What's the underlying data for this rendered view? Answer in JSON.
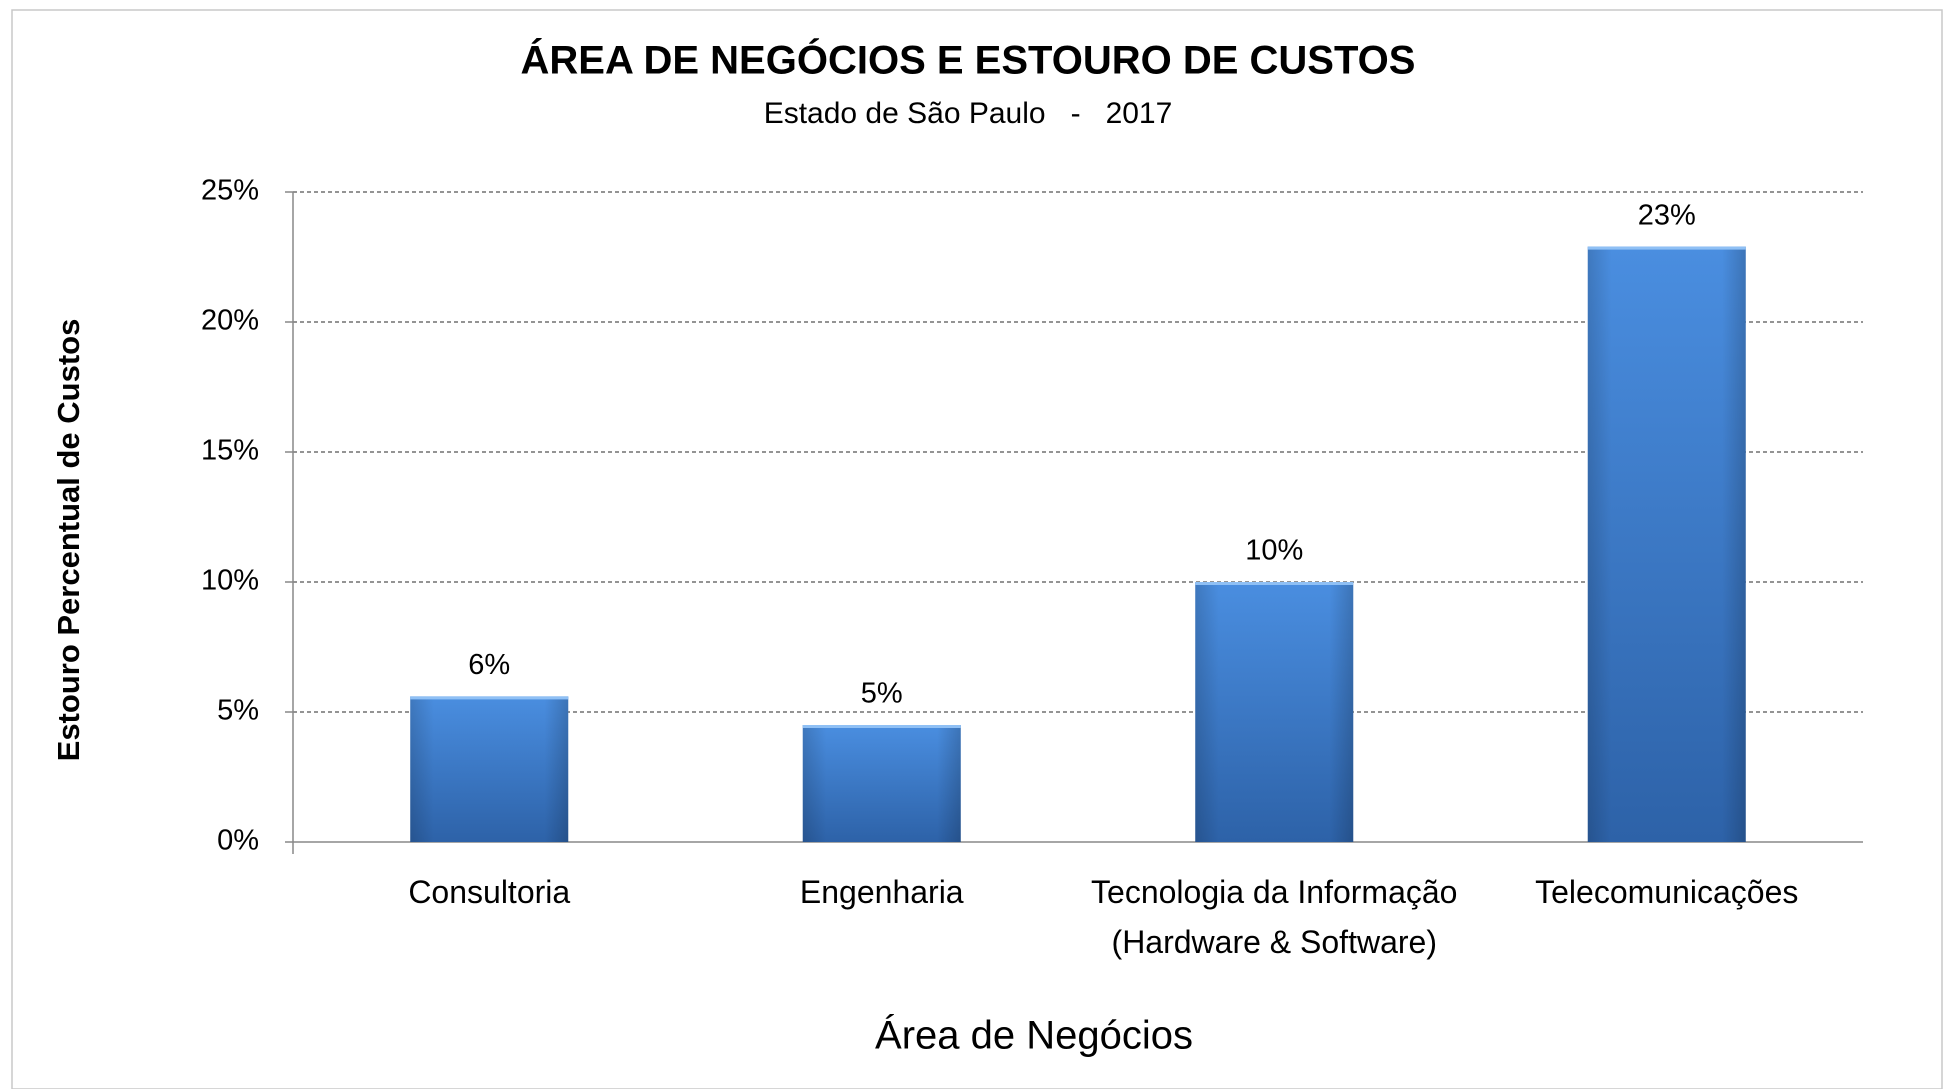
{
  "chart_data": {
    "type": "bar",
    "title": "ÁREA DE NEGÓCIOS E ESTOURO DE CUSTOS",
    "subtitle": "Estado de São Paulo   -   2017",
    "x_label": "Área de Negócios",
    "y_label": "Estouro Percentual de Custos",
    "categories": [
      "Consultoria",
      "Engenharia",
      "Tecnologia da Informação (Hardware & Software)",
      "Telecomunicações"
    ],
    "values": [
      5.6,
      4.5,
      10,
      22.9
    ],
    "value_labels": [
      "6%",
      "5%",
      "10%",
      "23%"
    ],
    "color": "#3d7fd0",
    "ylim": [
      0,
      25
    ],
    "yticks": [
      {
        "value": 0,
        "label": "0%"
      },
      {
        "value": 5,
        "label": "5%"
      },
      {
        "value": 10,
        "label": "10%"
      },
      {
        "value": 15,
        "label": "15%"
      },
      {
        "value": 20,
        "label": "20%"
      },
      {
        "value": 25,
        "label": "25%"
      }
    ],
    "grid": true
  }
}
